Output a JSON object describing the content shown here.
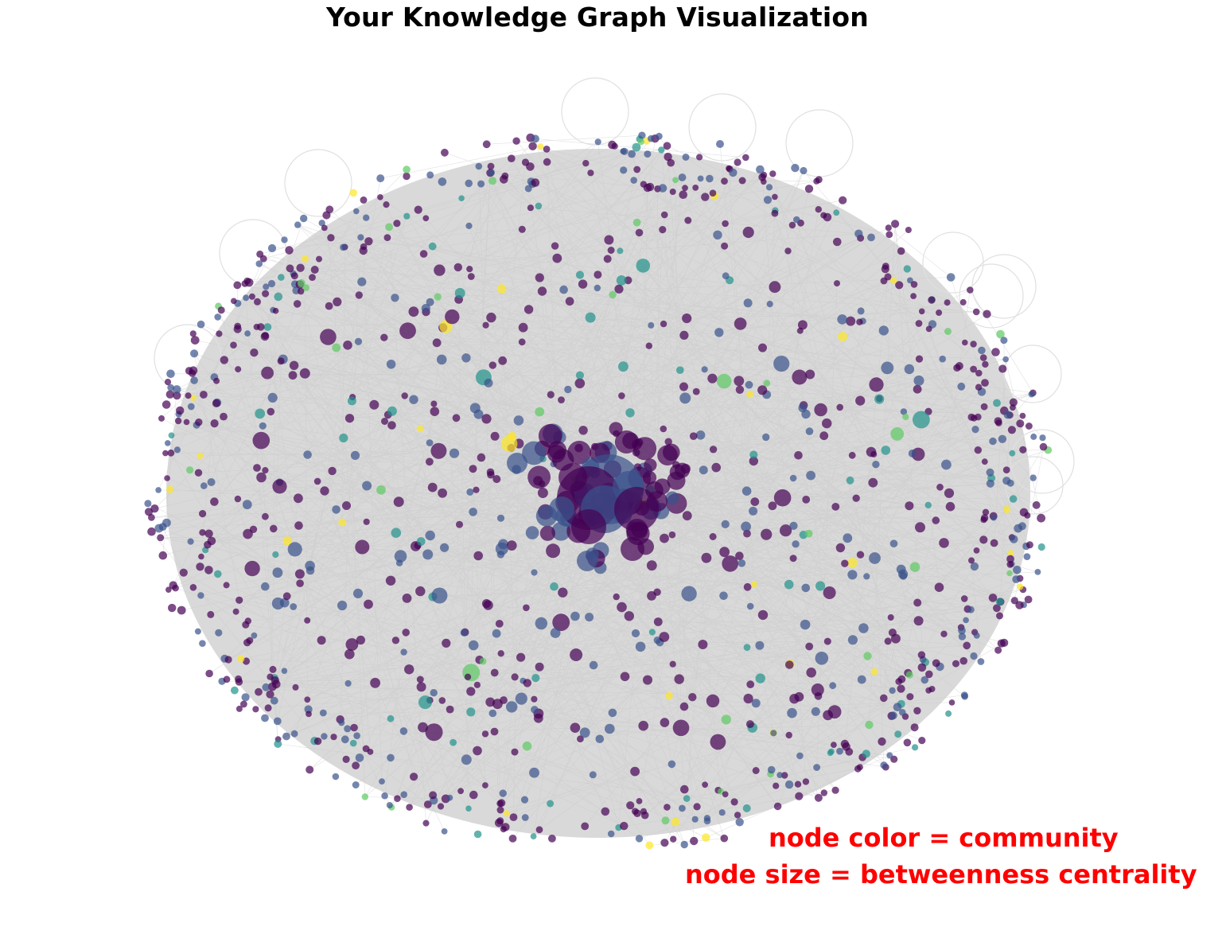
{
  "title": "Your Knowledge Graph Visualization",
  "annotations": {
    "color_note": "node color = community",
    "size_note": "node size = betweenness centrality",
    "note_color": "#ff0000"
  },
  "style": {
    "edge_color": "#d9d9d9",
    "node_alpha": 0.7,
    "colormap": "viridis",
    "colormap_stops": [
      "#440154",
      "#3b528b",
      "#21918c",
      "#5ec962",
      "#fde725"
    ]
  },
  "graph": {
    "layout": "force-directed, ellipse with dense hub at center",
    "community_weights": [
      0.58,
      0.3,
      0.07,
      0.03,
      0.02
    ]
  }
}
